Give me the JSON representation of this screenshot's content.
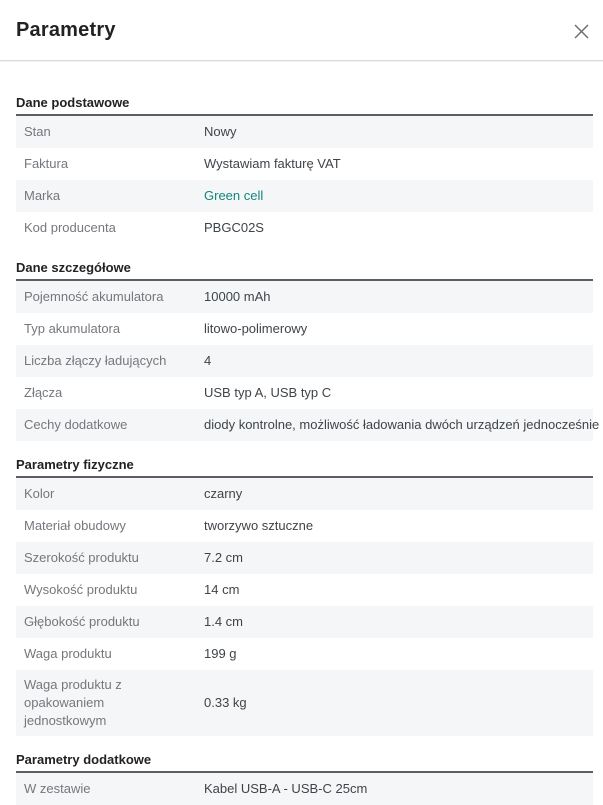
{
  "modal": {
    "title": "Parametry"
  },
  "colors": {
    "link": "#15857b",
    "row_alt_bg": "#f5f6f7",
    "label": "#74787d",
    "value": "#3f4449",
    "heading": "#222222",
    "section_border": "#5b5f63",
    "divider": "#dcdcdc",
    "close": "#6e6e6e"
  },
  "sections": [
    {
      "title": "Dane podstawowe",
      "rows": [
        {
          "label": "Stan",
          "value": "Nowy"
        },
        {
          "label": "Faktura",
          "value": "Wystawiam fakturę VAT"
        },
        {
          "label": "Marka",
          "value": "Green cell",
          "link": true
        },
        {
          "label": "Kod producenta",
          "value": "PBGC02S"
        }
      ]
    },
    {
      "title": "Dane szczegółowe",
      "rows": [
        {
          "label": "Pojemność akumulatora",
          "value": "10000 mAh"
        },
        {
          "label": "Typ akumulatora",
          "value": "litowo-polimerowy"
        },
        {
          "label": "Liczba złączy ładujących",
          "value": "4"
        },
        {
          "label": "Złącza",
          "value": "USB typ A, USB typ C"
        },
        {
          "label": "Cechy dodatkowe",
          "value": "diody kontrolne, możliwość ładowania dwóch urządzeń jednocześnie"
        }
      ]
    },
    {
      "title": "Parametry fizyczne",
      "rows": [
        {
          "label": "Kolor",
          "value": "czarny"
        },
        {
          "label": "Materiał obudowy",
          "value": "tworzywo sztuczne"
        },
        {
          "label": "Szerokość produktu",
          "value": "7.2 cm"
        },
        {
          "label": "Wysokość produktu",
          "value": "14 cm"
        },
        {
          "label": "Głębokość produktu",
          "value": "1.4 cm"
        },
        {
          "label": "Waga produktu",
          "value": "199 g"
        },
        {
          "label": "Waga produktu z opakowaniem jednostkowym",
          "value": "0.33 kg"
        }
      ]
    },
    {
      "title": "Parametry dodatkowe",
      "rows": [
        {
          "label": "W zestawie",
          "value": "Kabel USB-A - USB-C 25cm"
        }
      ]
    }
  ]
}
